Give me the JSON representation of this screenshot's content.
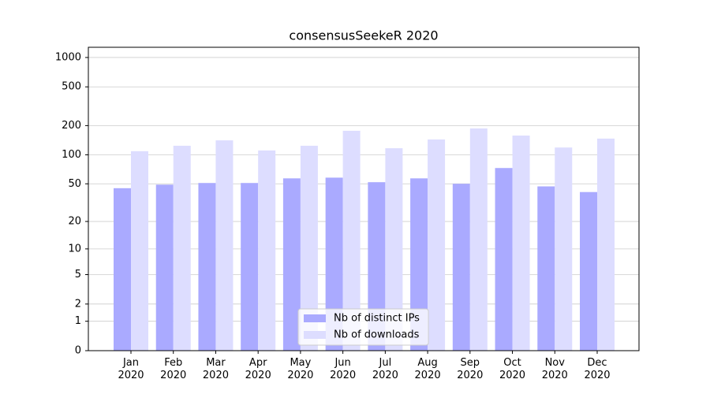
{
  "chart_data": {
    "type": "bar",
    "title": "consensusSeekeR 2020",
    "categories": [
      "Jan\n2020",
      "Feb\n2020",
      "Mar\n2020",
      "Apr\n2020",
      "May\n2020",
      "Jun\n2020",
      "Jul\n2020",
      "Aug\n2020",
      "Sep\n2020",
      "Oct\n2020",
      "Nov\n2020",
      "Dec\n2020"
    ],
    "series": [
      {
        "name": "Nb of distinct IPs",
        "color": "#aaaaff",
        "values": [
          45,
          49,
          51,
          51,
          57,
          58,
          52,
          57,
          50,
          73,
          47,
          41
        ]
      },
      {
        "name": "Nb of downloads",
        "color": "#ddddff",
        "values": [
          109,
          124,
          141,
          111,
          124,
          177,
          117,
          144,
          187,
          158,
          119,
          147
        ]
      }
    ],
    "yscale": "log1p",
    "ylim": [
      0,
      1272
    ],
    "yticks": [
      0,
      1,
      2,
      5,
      10,
      20,
      50,
      100,
      200,
      500,
      1000
    ],
    "grid": true,
    "legend": "lower center"
  }
}
